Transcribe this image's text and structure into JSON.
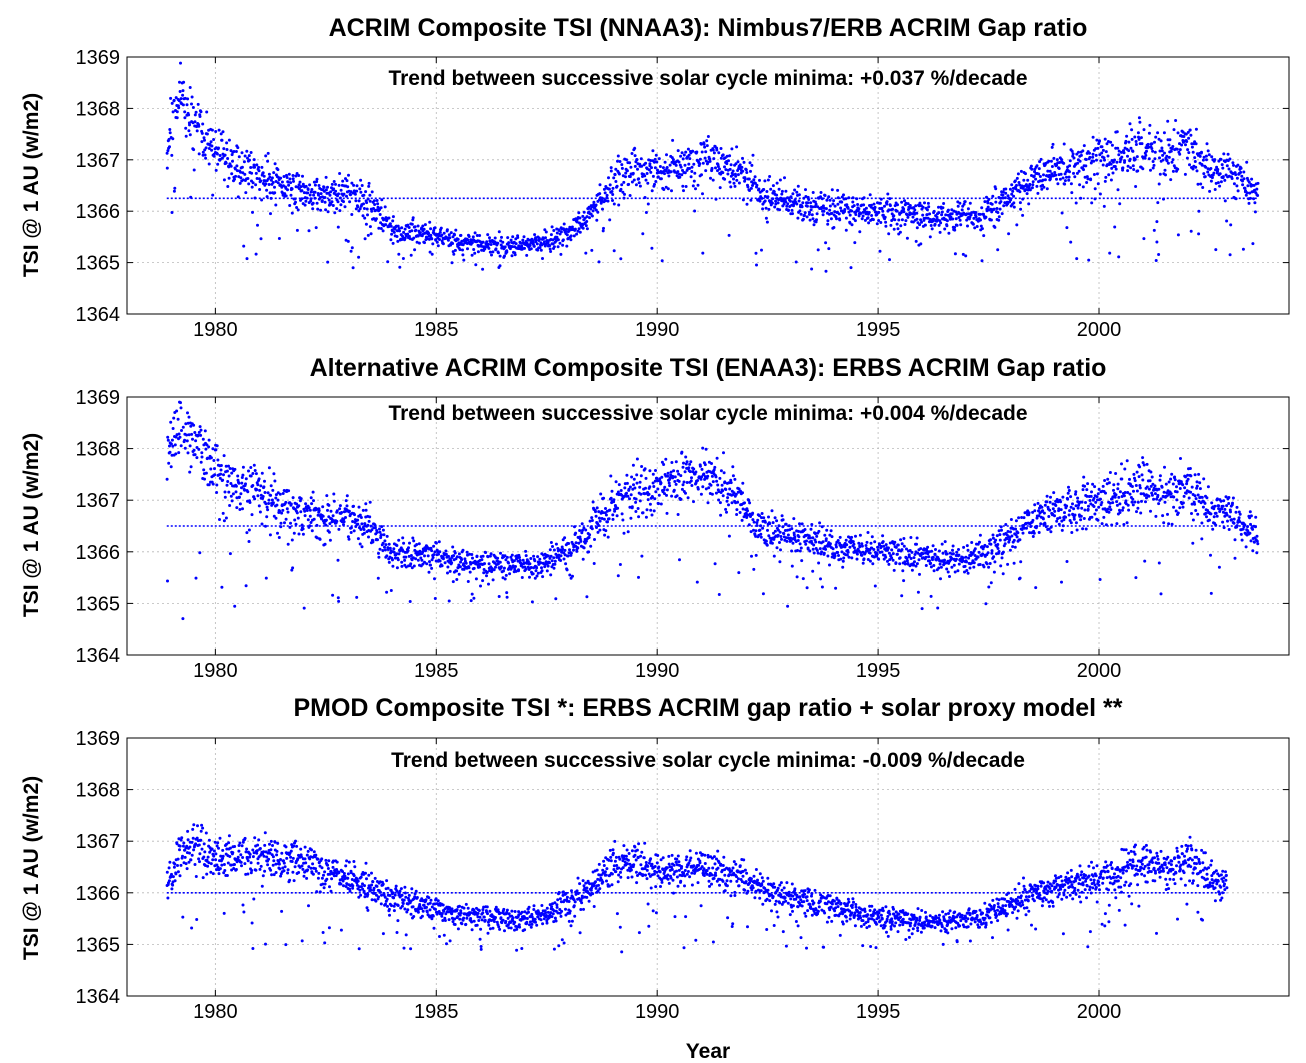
{
  "colors": {
    "series": "#0000ff",
    "text": "#000000",
    "grid": "#b8b8b8",
    "background": "#ffffff"
  },
  "xlabel": "Year",
  "chart_data": [
    {
      "type": "scatter",
      "title": "ACRIM Composite TSI (NNAA3): Nimbus7/ERB ACRIM Gap ratio",
      "annotation": "Trend between successive solar cycle minima: +0.037 %/decade",
      "ylabel": "TSI @ 1 AU (w/m2)",
      "xlabel": "",
      "xlim": [
        1978,
        2004.3
      ],
      "ylim": [
        1364,
        1369
      ],
      "x_ticks": [
        1980,
        1985,
        1990,
        1995,
        2000
      ],
      "y_ticks": [
        1364,
        1365,
        1366,
        1367,
        1368,
        1369
      ],
      "grid": true,
      "x_range": [
        1978.9,
        2003.6
      ],
      "trend_line": {
        "x": [
          1978.9,
          2003.6
        ],
        "y": [
          1366.25,
          1366.25
        ]
      },
      "series": [
        {
          "values_desc": "",
          "x": [
            1978.9,
            1979.2,
            1979.5,
            1980.0,
            1980.5,
            1981.0,
            1981.5,
            1982.0,
            1982.5,
            1983.0,
            1983.5,
            1984.0,
            1984.5,
            1985.0,
            1985.5,
            1986.0,
            1986.5,
            1987.0,
            1987.5,
            1988.0,
            1988.5,
            1989.0,
            1989.5,
            1990.0,
            1990.5,
            1991.0,
            1991.5,
            1992.0,
            1992.5,
            1993.0,
            1993.5,
            1994.0,
            1994.5,
            1995.0,
            1995.5,
            1996.0,
            1996.5,
            1997.0,
            1997.5,
            1998.0,
            1998.5,
            1999.0,
            1999.5,
            2000.0,
            2000.5,
            2001.0,
            2001.5,
            2002.0,
            2002.5,
            2003.0,
            2003.6
          ],
          "y": [
            1367.2,
            1368.2,
            1367.8,
            1367.2,
            1366.9,
            1366.8,
            1366.5,
            1366.4,
            1366.3,
            1366.4,
            1366.2,
            1365.6,
            1365.6,
            1365.5,
            1365.4,
            1365.35,
            1365.35,
            1365.35,
            1365.4,
            1365.6,
            1366.0,
            1366.6,
            1366.8,
            1366.8,
            1366.9,
            1367.0,
            1366.9,
            1366.7,
            1366.3,
            1366.2,
            1366.1,
            1366.05,
            1366.0,
            1366.0,
            1365.95,
            1365.9,
            1365.9,
            1365.95,
            1366.0,
            1366.3,
            1366.6,
            1366.8,
            1366.9,
            1367.0,
            1367.1,
            1367.3,
            1367.1,
            1367.3,
            1366.8,
            1366.7,
            1366.3
          ]
        }
      ]
    },
    {
      "type": "scatter",
      "title": "Alternative ACRIM Composite TSI (ENAA3): ERBS ACRIM Gap ratio",
      "annotation": "Trend between successive solar cycle minima: +0.004 %/decade",
      "ylabel": "TSI @ 1 AU (w/m2)",
      "xlabel": "",
      "xlim": [
        1978,
        2004.3
      ],
      "ylim": [
        1364,
        1369
      ],
      "x_ticks": [
        1980,
        1985,
        1990,
        1995,
        2000
      ],
      "y_ticks": [
        1364,
        1365,
        1366,
        1367,
        1368,
        1369
      ],
      "grid": true,
      "x_range": [
        1978.9,
        2003.6
      ],
      "trend_line": {
        "x": [
          1978.9,
          2003.6
        ],
        "y": [
          1366.5,
          1366.5
        ]
      },
      "series": [
        {
          "x": [
            1978.9,
            1979.2,
            1979.5,
            1980.0,
            1980.5,
            1981.0,
            1981.5,
            1982.0,
            1982.5,
            1983.0,
            1983.5,
            1984.0,
            1984.5,
            1985.0,
            1985.5,
            1986.0,
            1986.5,
            1987.0,
            1987.5,
            1988.0,
            1988.5,
            1989.0,
            1989.5,
            1990.0,
            1990.5,
            1991.0,
            1991.5,
            1992.0,
            1992.5,
            1993.0,
            1993.5,
            1994.0,
            1994.5,
            1995.0,
            1995.5,
            1996.0,
            1996.5,
            1997.0,
            1997.5,
            1998.0,
            1998.5,
            1999.0,
            1999.5,
            2000.0,
            2000.5,
            2001.0,
            2001.5,
            2002.0,
            2002.5,
            2003.0,
            2003.6
          ],
          "y": [
            1367.6,
            1368.6,
            1368.1,
            1367.6,
            1367.3,
            1367.2,
            1366.9,
            1366.8,
            1366.6,
            1366.7,
            1366.5,
            1366.0,
            1366.0,
            1365.9,
            1365.8,
            1365.75,
            1365.75,
            1365.75,
            1365.8,
            1366.0,
            1366.4,
            1367.0,
            1367.2,
            1367.2,
            1367.4,
            1367.5,
            1367.3,
            1366.8,
            1366.4,
            1366.3,
            1366.2,
            1366.1,
            1366.05,
            1366.0,
            1365.95,
            1365.9,
            1365.85,
            1365.9,
            1366.0,
            1366.3,
            1366.6,
            1366.8,
            1366.9,
            1367.0,
            1367.1,
            1367.3,
            1367.1,
            1367.3,
            1366.8,
            1366.7,
            1366.3
          ]
        }
      ]
    },
    {
      "type": "scatter",
      "title": "PMOD Composite TSI *: ERBS ACRIM gap ratio + solar proxy model **",
      "annotation": "Trend between successive solar cycle minima: -0.009 %/decade",
      "ylabel": "TSI @ 1 AU (w/m2)",
      "xlabel": "Year",
      "xlim": [
        1978,
        2004.3
      ],
      "ylim": [
        1364,
        1369
      ],
      "x_ticks": [
        1980,
        1985,
        1990,
        1995,
        2000
      ],
      "y_ticks": [
        1364,
        1365,
        1366,
        1367,
        1368,
        1369
      ],
      "grid": true,
      "x_range": [
        1978.9,
        2002.9
      ],
      "trend_line": {
        "x": [
          1978.9,
          2002.9
        ],
        "y": [
          1366.0,
          1366.0
        ]
      },
      "series": [
        {
          "x": [
            1978.9,
            1979.2,
            1979.5,
            1980.0,
            1980.5,
            1981.0,
            1981.5,
            1982.0,
            1982.5,
            1983.0,
            1983.5,
            1984.0,
            1984.5,
            1985.0,
            1985.5,
            1986.0,
            1986.5,
            1987.0,
            1987.5,
            1988.0,
            1988.5,
            1989.0,
            1989.5,
            1990.0,
            1990.5,
            1991.0,
            1991.5,
            1992.0,
            1992.5,
            1993.0,
            1993.5,
            1994.0,
            1994.5,
            1995.0,
            1995.5,
            1996.0,
            1996.5,
            1997.0,
            1997.5,
            1998.0,
            1998.5,
            1999.0,
            1999.5,
            2000.0,
            2000.5,
            2001.0,
            2001.5,
            2002.0,
            2002.5,
            2002.9
          ],
          "y": [
            1366.0,
            1366.8,
            1366.9,
            1366.7,
            1366.7,
            1366.7,
            1366.6,
            1366.6,
            1366.5,
            1366.3,
            1366.1,
            1365.9,
            1365.8,
            1365.7,
            1365.6,
            1365.55,
            1365.5,
            1365.5,
            1365.6,
            1365.8,
            1366.1,
            1366.5,
            1366.6,
            1366.4,
            1366.4,
            1366.5,
            1366.4,
            1366.3,
            1366.0,
            1365.9,
            1365.8,
            1365.7,
            1365.6,
            1365.55,
            1365.5,
            1365.45,
            1365.4,
            1365.5,
            1365.6,
            1365.8,
            1366.0,
            1366.1,
            1366.2,
            1366.3,
            1366.4,
            1366.6,
            1366.4,
            1366.7,
            1366.3,
            1366.1
          ]
        }
      ]
    }
  ]
}
